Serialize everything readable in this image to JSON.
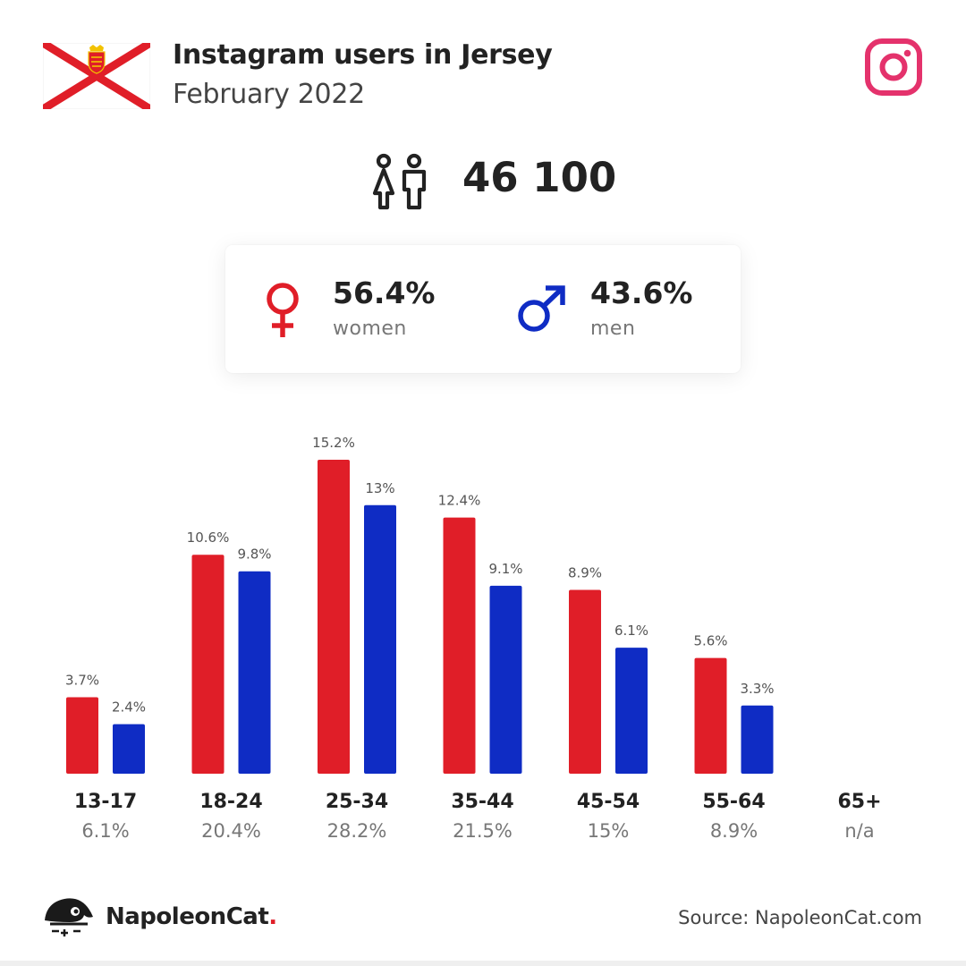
{
  "header": {
    "title": "Instagram users in Jersey",
    "subtitle": "February 2022"
  },
  "total": {
    "value": "46 100"
  },
  "gender": {
    "women": {
      "pct": "56.4%",
      "label": "women"
    },
    "men": {
      "pct": "43.6%",
      "label": "men"
    }
  },
  "colors": {
    "women": "#e01e28",
    "men": "#0f2cc4",
    "instagram": "#e4326c"
  },
  "chart_data": {
    "type": "bar",
    "categories": [
      "13-17",
      "18-24",
      "25-34",
      "35-44",
      "45-54",
      "55-64",
      "65+"
    ],
    "category_totals": [
      "6.1%",
      "20.4%",
      "28.2%",
      "21.5%",
      "15%",
      "8.9%",
      "n/a"
    ],
    "series": [
      {
        "values": [
          3.7,
          10.6,
          15.2,
          12.4,
          8.9,
          5.6,
          null
        ],
        "labels": [
          "3.7%",
          "10.6%",
          "15.2%",
          "12.4%",
          "8.9%",
          "5.6%",
          ""
        ]
      },
      {
        "values": [
          2.4,
          9.8,
          13,
          9.1,
          6.1,
          3.3,
          null
        ],
        "labels": [
          "2.4%",
          "9.8%",
          "13%",
          "9.1%",
          "6.1%",
          "3.3%",
          ""
        ]
      }
    ],
    "ylim": [
      0,
      15.2
    ],
    "grid": false
  },
  "footer": {
    "brand_name": "NapoleonCat",
    "brand_dot": ".",
    "source": "Source: NapoleonCat.com"
  }
}
